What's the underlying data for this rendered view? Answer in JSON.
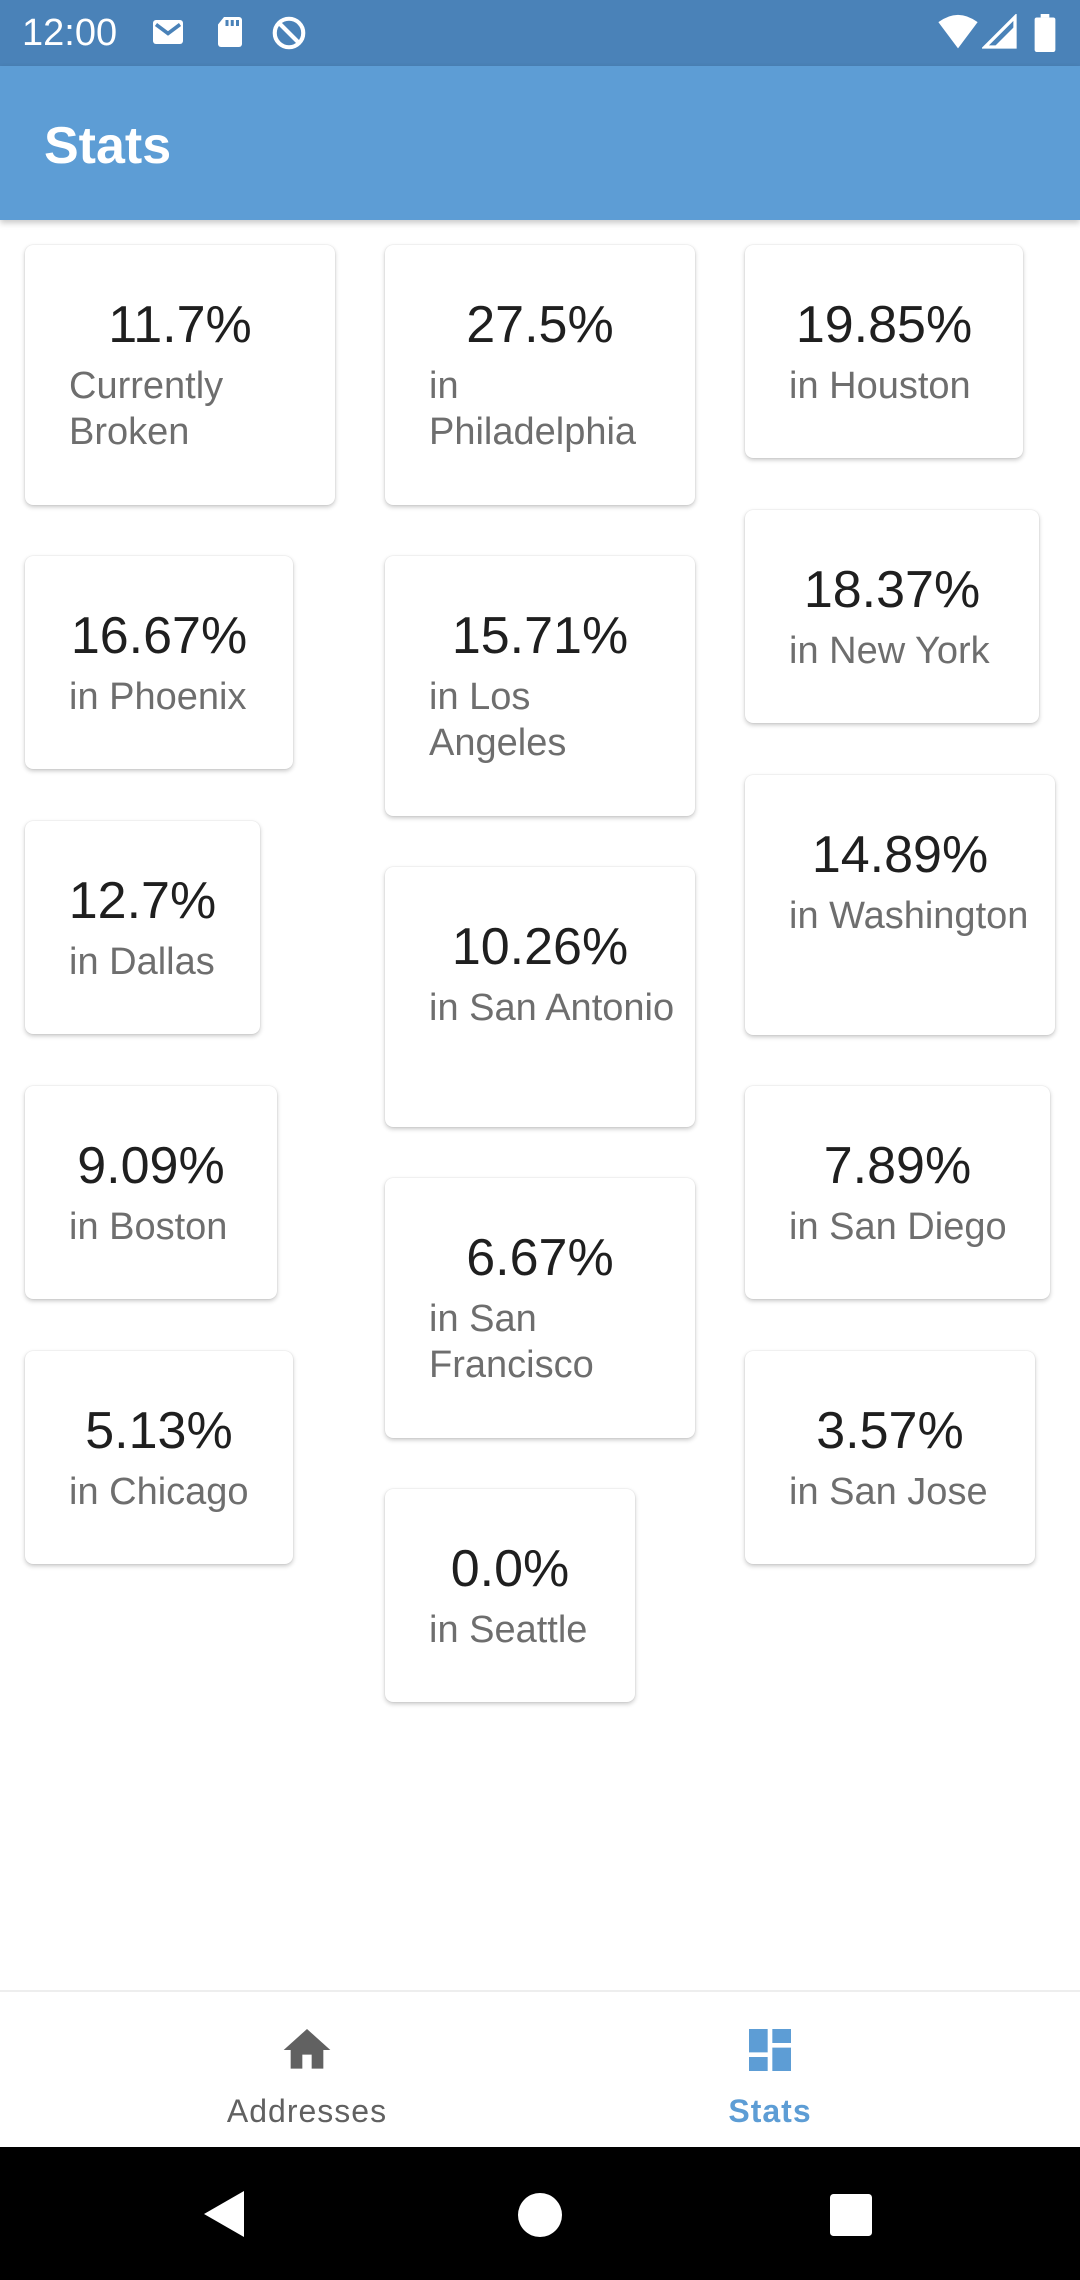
{
  "status_bar": {
    "time": "12:00",
    "left_icons": [
      "gmail-icon",
      "sd-card-icon",
      "data-saver-icon"
    ],
    "right_icons": [
      "wifi-icon",
      "cell-signal-icon",
      "battery-icon"
    ]
  },
  "app_bar": {
    "title": "Stats"
  },
  "stats": [
    {
      "value": "11.7%",
      "label": "Currently Broken"
    },
    {
      "value": "27.5%",
      "label": "in Philadelphia"
    },
    {
      "value": "19.85%",
      "label": "in Houston"
    },
    {
      "value": "16.67%",
      "label": "in Phoenix"
    },
    {
      "value": "15.71%",
      "label": "in Los Angeles"
    },
    {
      "value": "18.37%",
      "label": "in New York"
    },
    {
      "value": "12.7%",
      "label": "in Dallas"
    },
    {
      "value": "10.26%",
      "label": "in San Antonio"
    },
    {
      "value": "14.89%",
      "label": "in Washington"
    },
    {
      "value": "9.09%",
      "label": "in Boston"
    },
    {
      "value": "6.67%",
      "label": "in San Francisco"
    },
    {
      "value": "7.89%",
      "label": "in San Diego"
    },
    {
      "value": "5.13%",
      "label": "in Chicago"
    },
    {
      "value": "0.0%",
      "label": "in Seattle"
    },
    {
      "value": "3.57%",
      "label": "in San Jose"
    }
  ],
  "bottom_nav": {
    "items": [
      {
        "label": "Addresses",
        "icon": "home-icon",
        "active": false
      },
      {
        "label": "Stats",
        "icon": "dashboard-icon",
        "active": true
      }
    ]
  },
  "colors": {
    "status_bar": "#4a82b8",
    "app_bar": "#5d9dd5",
    "active": "#5d9dd5",
    "inactive": "#616161"
  }
}
